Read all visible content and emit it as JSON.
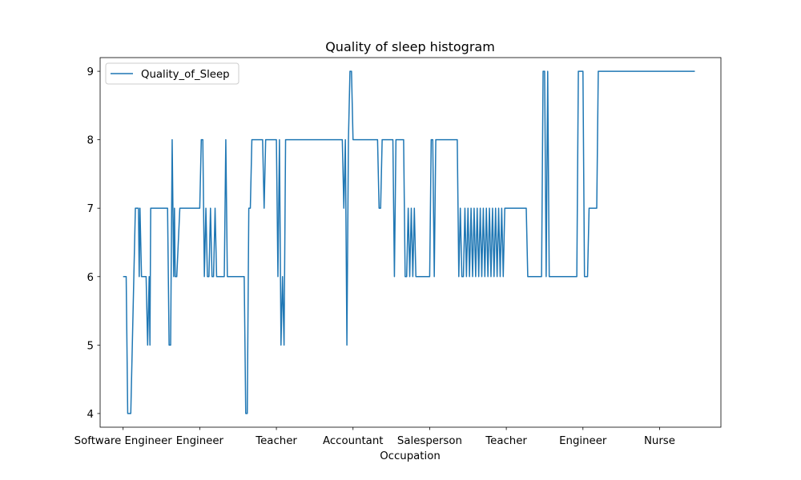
{
  "chart_data": {
    "type": "line",
    "title": "Quality of sleep histogram",
    "xlabel": "Occupation",
    "ylabel": "",
    "ylim": [
      3.8,
      9.2
    ],
    "yticks": [
      4,
      5,
      6,
      7,
      8,
      9
    ],
    "x_tick_positions": [
      0,
      50,
      100,
      150,
      200,
      250,
      300,
      350
    ],
    "x_tick_labels": [
      "Software Engineer",
      "Engineer",
      "Teacher",
      "Accountant",
      "Salesperson",
      "Teacher",
      "Engineer",
      "Nurse"
    ],
    "xlim": [
      -15,
      390
    ],
    "legend": {
      "position": "upper left",
      "entries": [
        "Quality_of_Sleep"
      ]
    },
    "color": "#1f77b4",
    "series": [
      {
        "name": "Quality_of_Sleep",
        "points": [
          [
            0,
            6
          ],
          [
            2,
            6
          ],
          [
            3,
            4
          ],
          [
            5,
            4
          ],
          [
            8,
            7
          ],
          [
            10,
            7
          ],
          [
            10.5,
            6
          ],
          [
            11,
            7
          ],
          [
            12,
            6
          ],
          [
            15,
            6
          ],
          [
            16,
            5
          ],
          [
            17,
            6
          ],
          [
            17.5,
            5
          ],
          [
            18,
            7
          ],
          [
            29,
            7
          ],
          [
            30,
            5
          ],
          [
            31,
            5
          ],
          [
            32,
            8
          ],
          [
            33,
            6
          ],
          [
            33.5,
            7
          ],
          [
            34,
            6
          ],
          [
            35,
            6
          ],
          [
            37,
            7
          ],
          [
            50,
            7
          ],
          [
            51,
            8
          ],
          [
            52,
            8
          ],
          [
            53,
            6
          ],
          [
            54,
            7
          ],
          [
            55,
            6
          ],
          [
            56,
            6
          ],
          [
            57,
            7
          ],
          [
            58,
            6
          ],
          [
            59,
            6
          ],
          [
            60,
            7
          ],
          [
            61,
            6
          ],
          [
            66,
            6
          ],
          [
            67,
            8
          ],
          [
            68,
            6
          ],
          [
            79,
            6
          ],
          [
            80,
            4
          ],
          [
            81,
            4
          ],
          [
            82,
            7
          ],
          [
            83,
            7
          ],
          [
            84,
            8
          ],
          [
            91,
            8
          ],
          [
            92,
            7
          ],
          [
            93,
            8
          ],
          [
            100,
            8
          ],
          [
            101,
            6
          ],
          [
            102,
            8
          ],
          [
            103,
            5
          ],
          [
            104,
            6
          ],
          [
            105,
            5
          ],
          [
            106,
            8
          ],
          [
            143,
            8
          ],
          [
            144,
            7
          ],
          [
            145,
            8
          ],
          [
            146,
            5
          ],
          [
            147,
            8
          ],
          [
            148,
            9
          ],
          [
            149,
            9
          ],
          [
            150,
            8
          ],
          [
            166,
            8
          ],
          [
            167,
            7
          ],
          [
            168,
            7
          ],
          [
            169,
            8
          ],
          [
            176,
            8
          ],
          [
            177,
            6
          ],
          [
            178,
            8
          ],
          [
            183,
            8
          ],
          [
            184,
            6
          ],
          [
            185,
            6
          ],
          [
            186,
            7
          ],
          [
            187,
            6
          ],
          [
            188,
            7
          ],
          [
            189,
            6
          ],
          [
            190,
            7
          ],
          [
            191,
            6
          ],
          [
            200,
            6
          ],
          [
            201,
            8
          ],
          [
            202,
            8
          ],
          [
            203,
            6
          ],
          [
            204,
            8
          ],
          [
            218,
            8
          ],
          [
            219,
            6
          ],
          [
            220,
            7
          ],
          [
            221,
            6
          ],
          [
            222,
            6
          ],
          [
            223,
            7
          ],
          [
            224,
            6
          ],
          [
            225,
            7
          ],
          [
            226,
            6
          ],
          [
            227,
            7
          ],
          [
            228,
            6
          ],
          [
            229,
            7
          ],
          [
            230,
            6
          ],
          [
            231,
            7
          ],
          [
            232,
            6
          ],
          [
            233,
            7
          ],
          [
            234,
            6
          ],
          [
            235,
            7
          ],
          [
            236,
            6
          ],
          [
            237,
            7
          ],
          [
            238,
            6
          ],
          [
            239,
            7
          ],
          [
            240,
            6
          ],
          [
            241,
            7
          ],
          [
            242,
            6
          ],
          [
            243,
            7
          ],
          [
            244,
            6
          ],
          [
            245,
            7
          ],
          [
            246,
            6
          ],
          [
            247,
            7
          ],
          [
            248,
            6
          ],
          [
            249,
            7
          ],
          [
            263,
            7
          ],
          [
            264,
            6
          ],
          [
            273,
            6
          ],
          [
            274,
            9
          ],
          [
            275,
            9
          ],
          [
            276,
            6
          ],
          [
            277,
            9
          ],
          [
            278,
            6
          ],
          [
            296,
            6
          ],
          [
            297,
            9
          ],
          [
            300,
            9
          ],
          [
            301,
            6
          ],
          [
            303,
            6
          ],
          [
            304,
            7
          ],
          [
            309,
            7
          ],
          [
            310,
            9
          ],
          [
            373,
            9
          ]
        ]
      }
    ]
  }
}
